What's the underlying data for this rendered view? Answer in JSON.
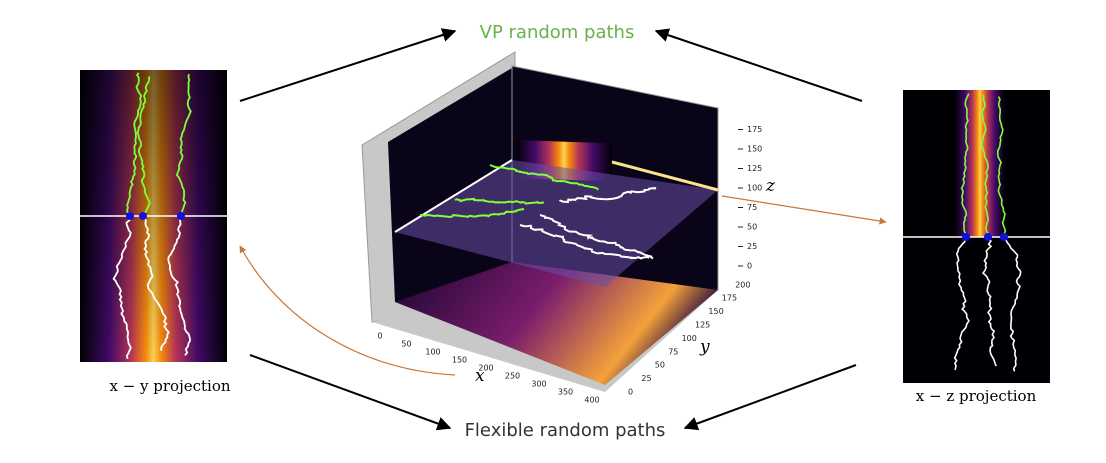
{
  "top_label": "VP random paths",
  "bottom_label": "Flexible random paths",
  "left_panel": {
    "caption": "x − y projection"
  },
  "right_panel": {
    "caption": "x − z projection"
  },
  "plot3d": {
    "x_label": "x",
    "y_label": "y",
    "z_label": "z",
    "x_ticks": [
      0,
      50,
      100,
      150,
      200,
      250,
      300,
      350,
      400
    ],
    "y_ticks": [
      0,
      25,
      50,
      75,
      100,
      125,
      150,
      175,
      200
    ],
    "z_ticks": [
      0,
      25,
      50,
      75,
      100,
      125,
      150,
      175
    ]
  }
}
